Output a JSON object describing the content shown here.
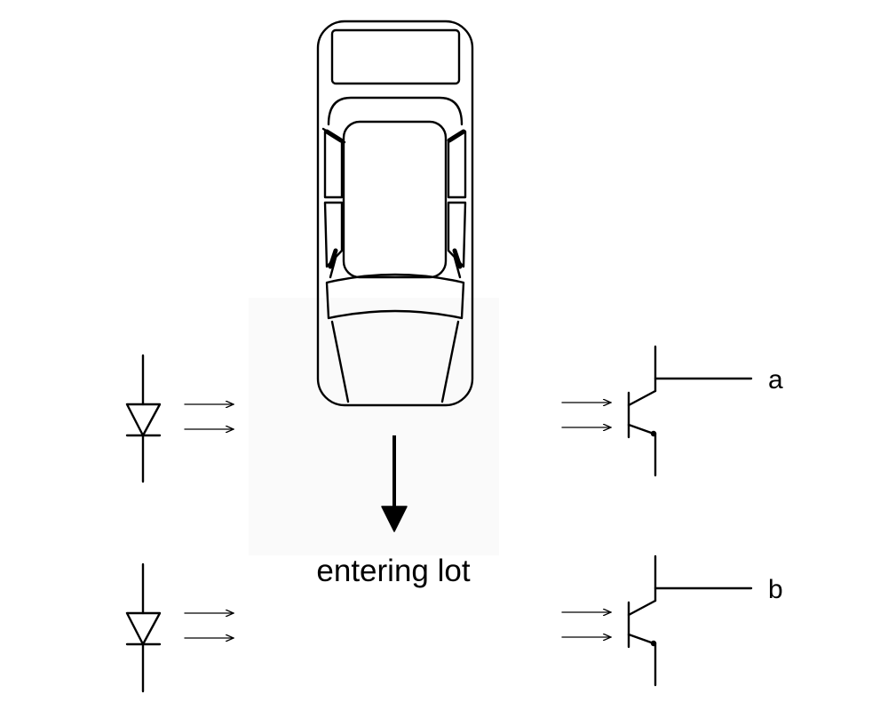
{
  "diagram": {
    "direction_label": "entering lot",
    "output_a": "a",
    "output_b": "b"
  },
  "colors": {
    "ink": "#000000",
    "background": "#ffffff",
    "highlight_box": "#fafafa"
  },
  "icons": {
    "car": "car-top-view-icon",
    "direction": "arrow-down-icon",
    "emitter": "light-emitting-diode-icon",
    "detector": "phototransistor-icon",
    "beam": "light-beam-arrows-icon"
  }
}
